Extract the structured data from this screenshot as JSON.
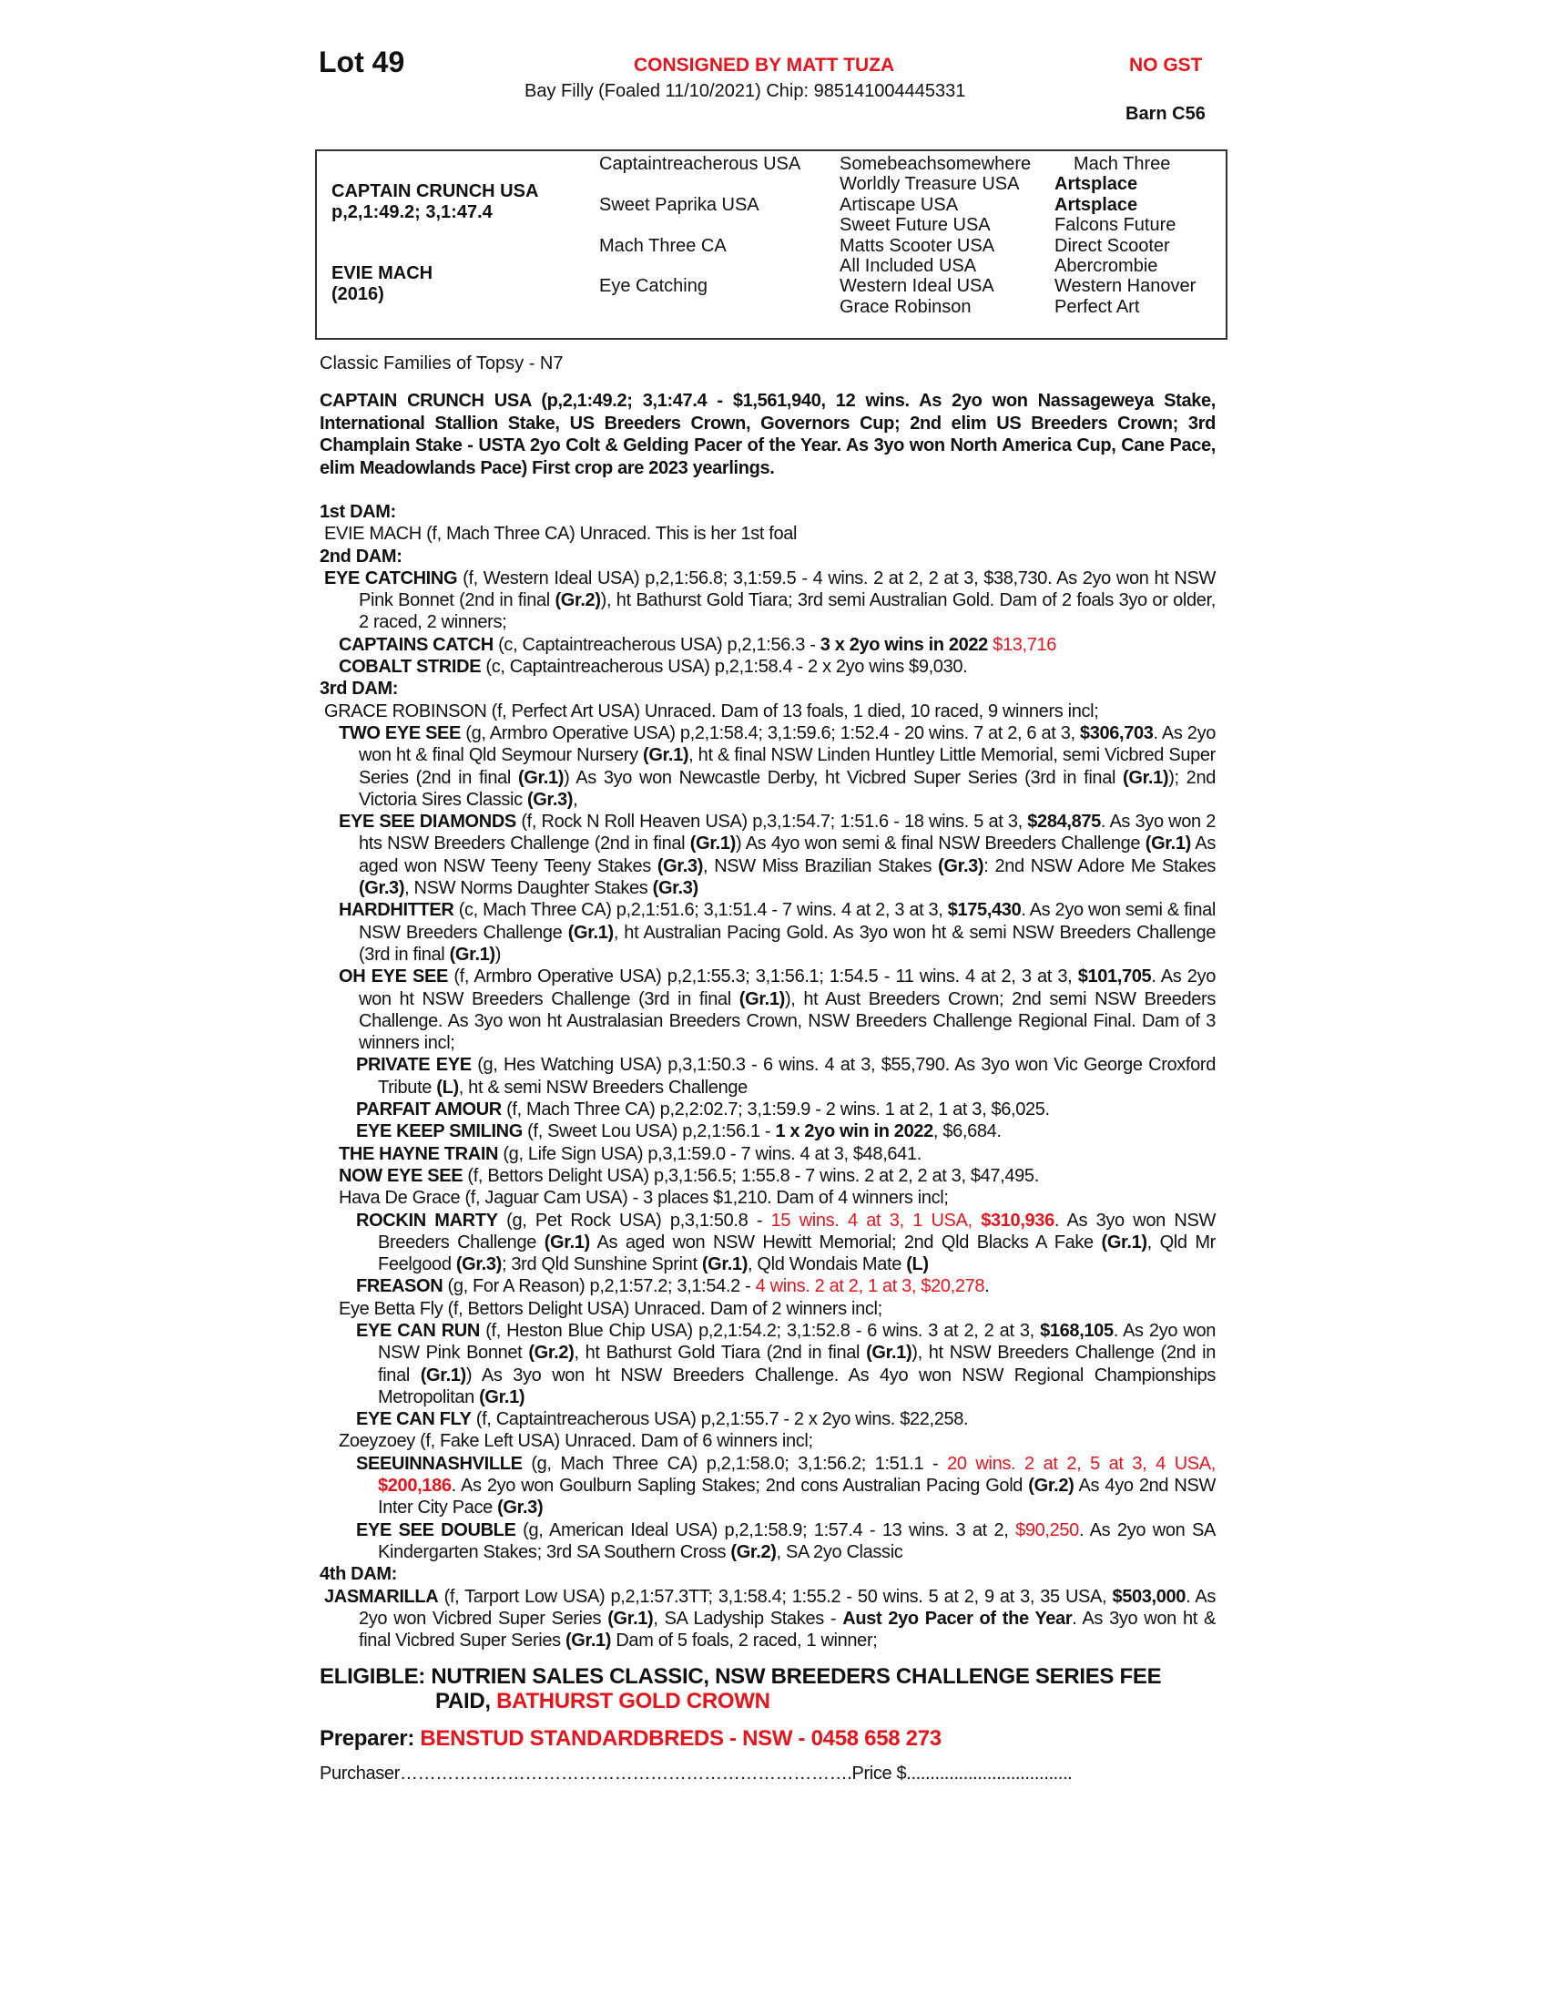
{
  "header": {
    "lot": "Lot 49",
    "consigned": "CONSIGNED BY MATT TUZA",
    "gst": "NO GST",
    "description": "Bay Filly (Foaled 11/10/2021) Chip: 985141004445331",
    "barn": "Barn C56"
  },
  "pedigree": {
    "sire_name": "CAPTAIN CRUNCH USA",
    "sire_record": "p,2,1:49.2; 3,1:47.4",
    "dam_name": "EVIE MACH",
    "dam_year": "(2016)",
    "gen2": [
      "Captaintreacherous USA",
      "Sweet Paprika USA",
      "Mach Three CA",
      "Eye Catching"
    ],
    "gen3": [
      "Somebeachsomewhere",
      "Worldly Treasure USA",
      "Artiscape USA",
      "Sweet Future USA",
      "Matts Scooter USA",
      "All Included USA",
      "Western Ideal USA",
      "Grace Robinson"
    ],
    "gen4": [
      "Mach Three",
      "Artsplace",
      "Artsplace",
      "Falcons Future",
      "Direct Scooter",
      "Abercrombie",
      "Western Hanover",
      "Perfect Art"
    ]
  },
  "family": "Classic Families of Topsy - N7",
  "sire_para": "CAPTAIN CRUNCH USA (p,2,1:49.2; 3,1:47.4 - $1,561,940, 12 wins. As 2yo won Nassageweya Stake, International Stallion Stake, US Breeders Crown, Governors Cup; 2nd elim US Breeders Crown; 3rd Champlain Stake - USTA 2yo Colt & Gelding Pacer of the Year. As 3yo won North America Cup, Cane Pace, elim Meadowlands Pace) First crop are 2023 yearlings.",
  "paras": [
    {
      "lvl": "hdr",
      "segs": [
        [
          "1st DAM:",
          ""
        ]
      ]
    },
    {
      "lvl": "dam",
      "segs": [
        [
          "EVIE MACH (f, Mach Three CA) Unraced. This is her 1st foal",
          ""
        ]
      ]
    },
    {
      "lvl": "hdr",
      "segs": [
        [
          "2nd DAM:",
          ""
        ]
      ]
    },
    {
      "lvl": "dam",
      "segs": [
        [
          "EYE CATCHING",
          "b"
        ],
        [
          " (f, Western Ideal USA) p,2,1:56.8; 3,1:59.5 - 4 wins. 2 at 2, 2 at 3, $38,730. As 2yo won ht NSW Pink Bonnet (2nd in final ",
          ""
        ],
        [
          "(Gr.2)",
          "b"
        ],
        [
          "), ht Bathurst Gold Tiara; 3rd semi Australian Gold. Dam of 2 foals 3yo or older, 2 raced, 2 winners;",
          ""
        ]
      ]
    },
    {
      "lvl": "prog",
      "segs": [
        [
          "CAPTAINS CATCH",
          "b"
        ],
        [
          " (c, Captaintreacherous USA) p,2,1:56.3 - ",
          ""
        ],
        [
          "3 x 2yo wins in  2022",
          "b"
        ],
        [
          " ",
          ""
        ],
        [
          "$13,716",
          "r"
        ]
      ]
    },
    {
      "lvl": "prog",
      "segs": [
        [
          "COBALT STRIDE",
          "b"
        ],
        [
          " (c, Captaintreacherous USA) p,2,1:58.4 - 2 x 2yo wins $9,030.",
          ""
        ]
      ]
    },
    {
      "lvl": "hdr",
      "segs": [
        [
          "3rd DAM:",
          ""
        ]
      ]
    },
    {
      "lvl": "dam",
      "segs": [
        [
          "GRACE ROBINSON (f, Perfect Art USA) Unraced. Dam of 13 foals, 1 died, 10 raced, 9 winners incl;",
          ""
        ]
      ]
    },
    {
      "lvl": "prog",
      "segs": [
        [
          "TWO EYE SEE",
          "b"
        ],
        [
          " (g, Armbro Operative USA) p,2,1:58.4; 3,1:59.6; 1:52.4 - 20 wins. 7 at 2, 6 at 3, ",
          ""
        ],
        [
          "$306,703",
          "b"
        ],
        [
          ". As 2yo won ht & final Qld Seymour Nursery ",
          ""
        ],
        [
          "(Gr.1)",
          "b"
        ],
        [
          ", ht & final NSW Linden Huntley Little Memorial, semi Vicbred Super Series (2nd in final ",
          ""
        ],
        [
          "(Gr.1)",
          "b"
        ],
        [
          ") As 3yo won Newcastle Derby, ht Vicbred Super Series (3rd in final ",
          ""
        ],
        [
          "(Gr.1)",
          "b"
        ],
        [
          "); 2nd Victoria Sires Classic ",
          ""
        ],
        [
          "(Gr.3)",
          "b"
        ],
        [
          ",",
          ""
        ]
      ]
    },
    {
      "lvl": "prog",
      "segs": [
        [
          "EYE SEE DIAMONDS",
          "b"
        ],
        [
          " (f, Rock N Roll Heaven USA) p,3,1:54.7; 1:51.6 - 18 wins. 5 at 3, ",
          ""
        ],
        [
          "$284,875",
          "b"
        ],
        [
          ". As 3yo won 2 hts NSW Breeders Challenge (2nd in final ",
          ""
        ],
        [
          "(Gr.1)",
          "b"
        ],
        [
          ") As 4yo won semi & final NSW Breeders Challenge ",
          ""
        ],
        [
          "(Gr.1)",
          "b"
        ],
        [
          " As aged won NSW Teeny Teeny Stakes ",
          ""
        ],
        [
          "(Gr.3)",
          "b"
        ],
        [
          ", NSW Miss Brazilian Stakes ",
          ""
        ],
        [
          "(Gr.3)",
          "b"
        ],
        [
          ": 2nd NSW Adore Me Stakes ",
          ""
        ],
        [
          "(Gr.3)",
          "b"
        ],
        [
          ", NSW Norms Daughter Stakes ",
          ""
        ],
        [
          "(Gr.3)",
          "b"
        ]
      ]
    },
    {
      "lvl": "prog",
      "segs": [
        [
          "HARDHITTER",
          "b"
        ],
        [
          " (c, Mach Three CA) p,2,1:51.6; 3,1:51.4 - 7 wins. 4 at 2, 3 at 3, ",
          ""
        ],
        [
          "$175,430",
          "b"
        ],
        [
          ". As 2yo won semi & final NSW Breeders Challenge ",
          ""
        ],
        [
          "(Gr.1)",
          "b"
        ],
        [
          ", ht Australian Pacing Gold. As 3yo won ht & semi NSW Breeders Challenge (3rd in final ",
          ""
        ],
        [
          "(Gr.1)",
          "b"
        ],
        [
          ")",
          ""
        ]
      ]
    },
    {
      "lvl": "prog",
      "segs": [
        [
          "OH EYE SEE",
          "b"
        ],
        [
          " (f, Armbro Operative USA) p,2,1:55.3; 3,1:56.1; 1:54.5 - 11 wins. 4 at 2, 3 at 3, ",
          ""
        ],
        [
          "$101,705",
          "b"
        ],
        [
          ". As 2yo won ht NSW Breeders Challenge (3rd in final ",
          ""
        ],
        [
          "(Gr.1)",
          "b"
        ],
        [
          "), ht Aust Breeders Crown; 2nd semi NSW Breeders Challenge. As 3yo won ht Australasian Breeders Crown, NSW Breeders Challenge Regional Final. Dam of 3 winners incl;",
          ""
        ]
      ]
    },
    {
      "lvl": "gprog",
      "segs": [
        [
          "PRIVATE EYE",
          "b"
        ],
        [
          " (g, Hes Watching USA) p,3,1:50.3 - 6 wins. 4 at 3, $55,790. As 3yo won Vic George Croxford Tribute ",
          ""
        ],
        [
          "(L)",
          "b"
        ],
        [
          ", ht & semi NSW Breeders Challenge",
          ""
        ]
      ]
    },
    {
      "lvl": "gprog",
      "segs": [
        [
          "PARFAIT AMOUR",
          "b"
        ],
        [
          " (f, Mach Three CA) p,2,2:02.7; 3,1:59.9 - 2 wins. 1 at 2, 1 at 3, $6,025.",
          ""
        ]
      ]
    },
    {
      "lvl": "gprog",
      "segs": [
        [
          "EYE KEEP SMILING",
          "b"
        ],
        [
          " (f, Sweet Lou USA) p,2,1:56.1 - ",
          ""
        ],
        [
          "1 x 2yo win in 2022",
          "b"
        ],
        [
          ", $6,684.",
          ""
        ]
      ]
    },
    {
      "lvl": "prog",
      "segs": [
        [
          "THE HAYNE TRAIN",
          "b"
        ],
        [
          " (g, Life Sign USA) p,3,1:59.0 - 7 wins. 4 at 3, $48,641.",
          ""
        ]
      ]
    },
    {
      "lvl": "prog",
      "segs": [
        [
          "NOW EYE SEE",
          "b"
        ],
        [
          " (f, Bettors Delight USA) p,3,1:56.5; 1:55.8 - 7 wins. 2 at 2, 2 at 3, $47,495.",
          ""
        ]
      ]
    },
    {
      "lvl": "prog",
      "segs": [
        [
          "Hava De Grace (f, Jaguar Cam USA) - 3 places $1,210. Dam of 4 winners incl;",
          ""
        ]
      ]
    },
    {
      "lvl": "gprog",
      "segs": [
        [
          "ROCKIN MARTY",
          "b"
        ],
        [
          " (g, Pet Rock USA) p,3,1:50.8 - ",
          ""
        ],
        [
          "15 wins. 4 at 3, 1 USA, ",
          "r"
        ],
        [
          "$310,936",
          "br"
        ],
        [
          ". As 3yo won NSW Breeders Challenge ",
          ""
        ],
        [
          "(Gr.1)",
          "b"
        ],
        [
          " As aged won NSW Hewitt Memorial; 2nd Qld Blacks A Fake ",
          ""
        ],
        [
          "(Gr.1)",
          "b"
        ],
        [
          ", Qld Mr Feelgood ",
          ""
        ],
        [
          "(Gr.3)",
          "b"
        ],
        [
          "; 3rd Qld Sunshine Sprint ",
          ""
        ],
        [
          "(Gr.1)",
          "b"
        ],
        [
          ", Qld Wondais Mate ",
          ""
        ],
        [
          "(L)",
          "b"
        ]
      ]
    },
    {
      "lvl": "gprog",
      "segs": [
        [
          "FREASON",
          "b"
        ],
        [
          " (g, For A Reason) p,2,1:57.2; 3,1:54.2 - ",
          ""
        ],
        [
          "4 wins. 2 at 2, 1 at 3, $20,278",
          "r"
        ],
        [
          ".",
          ""
        ]
      ]
    },
    {
      "lvl": "prog",
      "segs": [
        [
          "Eye Betta Fly (f, Bettors Delight USA) Unraced. Dam of 2 winners incl;",
          ""
        ]
      ]
    },
    {
      "lvl": "gprog",
      "segs": [
        [
          "EYE CAN RUN",
          "b"
        ],
        [
          " (f, Heston Blue Chip USA) p,2,1:54.2; 3,1:52.8 - 6 wins. 3 at 2, 2 at 3, ",
          ""
        ],
        [
          "$168,105",
          "b"
        ],
        [
          ". As 2yo won NSW Pink Bonnet ",
          ""
        ],
        [
          "(Gr.2)",
          "b"
        ],
        [
          ", ht Bathurst Gold Tiara (2nd in final ",
          ""
        ],
        [
          "(Gr.1)",
          "b"
        ],
        [
          "), ht NSW Breeders Challenge (2nd in final ",
          ""
        ],
        [
          "(Gr.1)",
          "b"
        ],
        [
          ") As 3yo won ht NSW Breeders Challenge. As 4yo won NSW Regional Championships Metropolitan ",
          ""
        ],
        [
          "(Gr.1)",
          "b"
        ]
      ]
    },
    {
      "lvl": "gprog",
      "segs": [
        [
          "EYE CAN FLY",
          "b"
        ],
        [
          " (f, Captaintreacherous USA) p,2,1:55.7 - 2 x 2yo wins. $22,258.",
          ""
        ]
      ]
    },
    {
      "lvl": "prog",
      "segs": [
        [
          "Zoeyzoey (f, Fake Left USA) Unraced. Dam of 6 winners incl;",
          ""
        ]
      ]
    },
    {
      "lvl": "gprog",
      "segs": [
        [
          "SEEUINNASHVILLE",
          "b"
        ],
        [
          " (g, Mach Three CA) p,2,1:58.0; 3,1:56.2; 1:51.1 - ",
          ""
        ],
        [
          "20 wins. 2 at 2, 5 at 3, 4 USA, ",
          "r"
        ],
        [
          "$200,186",
          "br"
        ],
        [
          ". As 2yo won Goulburn Sapling Stakes; 2nd cons Australian Pacing Gold ",
          ""
        ],
        [
          "(Gr.2)",
          "b"
        ],
        [
          " As 4yo 2nd NSW Inter City Pace ",
          ""
        ],
        [
          "(Gr.3)",
          "b"
        ]
      ]
    },
    {
      "lvl": "gprog",
      "segs": [
        [
          "EYE SEE DOUBLE",
          "b"
        ],
        [
          " (g, American Ideal USA) p,2,1:58.9; 1:57.4 - 13 wins. 3 at 2, ",
          ""
        ],
        [
          "$90,250",
          "r"
        ],
        [
          ". As 2yo won SA Kindergarten Stakes; 3rd SA Southern Cross ",
          ""
        ],
        [
          "(Gr.2)",
          "b"
        ],
        [
          ", SA 2yo Classic",
          ""
        ]
      ]
    },
    {
      "lvl": "hdr",
      "segs": [
        [
          "4th DAM:",
          ""
        ]
      ]
    },
    {
      "lvl": "dam",
      "segs": [
        [
          "JASMARILLA",
          "b"
        ],
        [
          " (f, Tarport Low USA) p,2,1:57.3TT; 3,1:58.4; 1:55.2 - 50 wins. 5 at 2, 9 at 3, 35 USA, ",
          ""
        ],
        [
          "$503,000",
          "b"
        ],
        [
          ". As 2yo won Vicbred Super Series ",
          ""
        ],
        [
          "(Gr.1)",
          "b"
        ],
        [
          ", SA Ladyship Stakes - ",
          ""
        ],
        [
          "Aust 2yo Pacer of the Year",
          "b"
        ],
        [
          ". As 3yo won ht & final Vicbred Super Series ",
          ""
        ],
        [
          "(Gr.1)",
          "b"
        ],
        [
          " Dam of 5 foals, 2 raced, 1 winner;",
          ""
        ]
      ]
    }
  ],
  "eligible": {
    "line1": "ELIGIBLE: NUTRIEN SALES CLASSIC, NSW BREEDERS CHALLENGE SERIES FEE",
    "line2_black": "PAID, ",
    "line2_red": "BATHURST GOLD CROWN"
  },
  "preparer": {
    "label": "Preparer: ",
    "value": "BENSTUD STANDARDBREDS - NSW - 0458 658 273"
  },
  "purchase": {
    "purchaser": "Purchaser………………………………………………………………….",
    "price": "Price $..................................."
  },
  "colors": {
    "accent_red": "#e8141c",
    "text": "#111111"
  }
}
